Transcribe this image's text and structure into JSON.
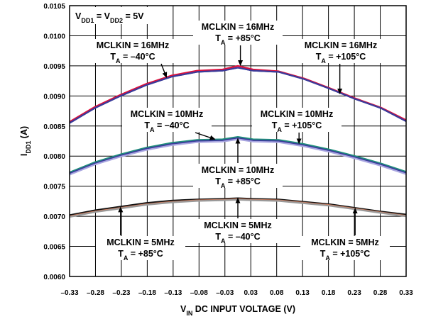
{
  "chart_data": {
    "type": "line",
    "xlabel": "V_IN DC INPUT VOLTAGE (V)",
    "ylabel": "I_DD1 (A)",
    "xlim": [
      -0.33,
      0.33
    ],
    "ylim": [
      0.006,
      0.0105
    ],
    "x_ticks": [
      "-0.33",
      "-0.28",
      "-0.23",
      "-0.18",
      "-0.13",
      "-0.08",
      "-0.03",
      "0.03",
      "0.08",
      "0.13",
      "0.18",
      "0.23",
      "0.28",
      "0.33"
    ],
    "y_ticks": [
      "0.0060",
      "0.0065",
      "0.0070",
      "0.0075",
      "0.0080",
      "0.0085",
      "0.0090",
      "0.0095",
      "0.0100",
      "0.0105"
    ],
    "grid": true,
    "x": [
      -0.33,
      -0.28,
      -0.23,
      -0.18,
      -0.13,
      -0.08,
      -0.03,
      0.0,
      0.03,
      0.08,
      0.13,
      0.18,
      0.23,
      0.28,
      0.33
    ],
    "series": [
      {
        "name": "MCLKIN = 16MHz, T_A = -40°C",
        "color": "#2b2b8c",
        "values": [
          0.00855,
          0.0088,
          0.009,
          0.00918,
          0.00932,
          0.0094,
          0.00942,
          0.00947,
          0.00942,
          0.0094,
          0.00928,
          0.00912,
          0.00895,
          0.0088,
          0.00858
        ]
      },
      {
        "name": "MCLKIN = 16MHz, T_A = +85°C",
        "color": "#e0103a",
        "values": [
          0.00857,
          0.00882,
          0.00902,
          0.0092,
          0.00934,
          0.00942,
          0.00944,
          0.0095,
          0.00944,
          0.00941,
          0.00929,
          0.00913,
          0.00896,
          0.00881,
          0.0086
        ]
      },
      {
        "name": "MCLKIN = 16MHz, T_A = +105°C",
        "color": "#3a3a9a",
        "values": [
          0.00855,
          0.0088,
          0.009,
          0.00918,
          0.00932,
          0.0094,
          0.00942,
          0.00947,
          0.00942,
          0.0094,
          0.00928,
          0.00912,
          0.00895,
          0.0088,
          0.00858
        ]
      },
      {
        "name": "MCLKIN = 10MHz, T_A = -40°C",
        "color": "#1f8f7a",
        "values": [
          0.00773,
          0.0079,
          0.00803,
          0.00814,
          0.00822,
          0.00827,
          0.00828,
          0.00832,
          0.00828,
          0.00827,
          0.0082,
          0.00811,
          0.008,
          0.00788,
          0.00774
        ]
      },
      {
        "name": "MCLKIN = 10MHz, T_A = +105°C",
        "color": "#3a3a9a",
        "values": [
          0.00771,
          0.00788,
          0.00801,
          0.00812,
          0.0082,
          0.00825,
          0.00826,
          0.0083,
          0.00826,
          0.00825,
          0.00818,
          0.00809,
          0.00798,
          0.00786,
          0.00772
        ]
      },
      {
        "name": "MCLKIN = 10MHz, T_A = +85°C",
        "color": "#a9a6e0",
        "values": [
          0.00769,
          0.00786,
          0.00799,
          0.0081,
          0.00818,
          0.00823,
          0.00824,
          0.00828,
          0.00824,
          0.00823,
          0.00816,
          0.00807,
          0.00796,
          0.00784,
          0.0077
        ]
      },
      {
        "name": "MCLKIN = 5MHz, T_A = -40°C",
        "color": "#111111",
        "values": [
          0.00702,
          0.0071,
          0.00716,
          0.00722,
          0.00726,
          0.00728,
          0.00729,
          0.0073,
          0.00729,
          0.00728,
          0.00724,
          0.0072,
          0.00714,
          0.00708,
          0.00703
        ]
      },
      {
        "name": "MCLKIN = 5MHz, T_A = +85°C",
        "color": "#c97a5c",
        "values": [
          0.007,
          0.00708,
          0.00714,
          0.0072,
          0.00724,
          0.007265,
          0.007275,
          0.007285,
          0.007275,
          0.007265,
          0.007225,
          0.007185,
          0.007125,
          0.007065,
          0.00701
        ]
      },
      {
        "name": "MCLKIN = 5MHz, T_A = +105°C",
        "color": "#9a9a9a",
        "values": [
          0.00699,
          0.00707,
          0.00713,
          0.00719,
          0.00723,
          0.007255,
          0.007265,
          0.007275,
          0.007265,
          0.007255,
          0.007215,
          0.007175,
          0.007115,
          0.007055,
          0.007
        ]
      }
    ],
    "supply_label": "V_DD1 = V_DD2 = 5V",
    "annotations": [
      {
        "line1": "MCLKIN = 16MHz",
        "line2": "T_A = –40°C",
        "arrow_to": [
          -0.14,
          0.00931
        ]
      },
      {
        "line1": "MCLKIN = 16MHz",
        "line2": "T_A = +85°C",
        "arrow_to": [
          0.005,
          0.00951
        ]
      },
      {
        "line1": "MCLKIN = 16MHz",
        "line2": "T_A = +105°C",
        "arrow_to": [
          0.2,
          0.00904
        ]
      },
      {
        "line1": "MCLKIN = 10MHz",
        "line2": "T_A = –40°C",
        "arrow_to": [
          -0.045,
          0.00828
        ]
      },
      {
        "line1": "MCLKIN = 10MHz",
        "line2": "T_A = +105°C",
        "arrow_to": [
          0.12,
          0.00821
        ]
      },
      {
        "line1": "MCLKIN = 10MHz",
        "line2": "T_A = +85°C",
        "arrow_to": [
          0.0,
          0.00829
        ]
      },
      {
        "line1": "MCLKIN = 5MHz",
        "line2": "T_A = –40°C",
        "arrow_to": [
          0.0,
          0.0073
        ]
      },
      {
        "line1": "MCLKIN = 5MHz",
        "line2": "T_A = +85°C",
        "arrow_to": [
          -0.23,
          0.00715
        ]
      },
      {
        "line1": "MCLKIN = 5MHz",
        "line2": "T_A = +105°C",
        "arrow_to": [
          0.23,
          0.00713
        ]
      }
    ]
  }
}
